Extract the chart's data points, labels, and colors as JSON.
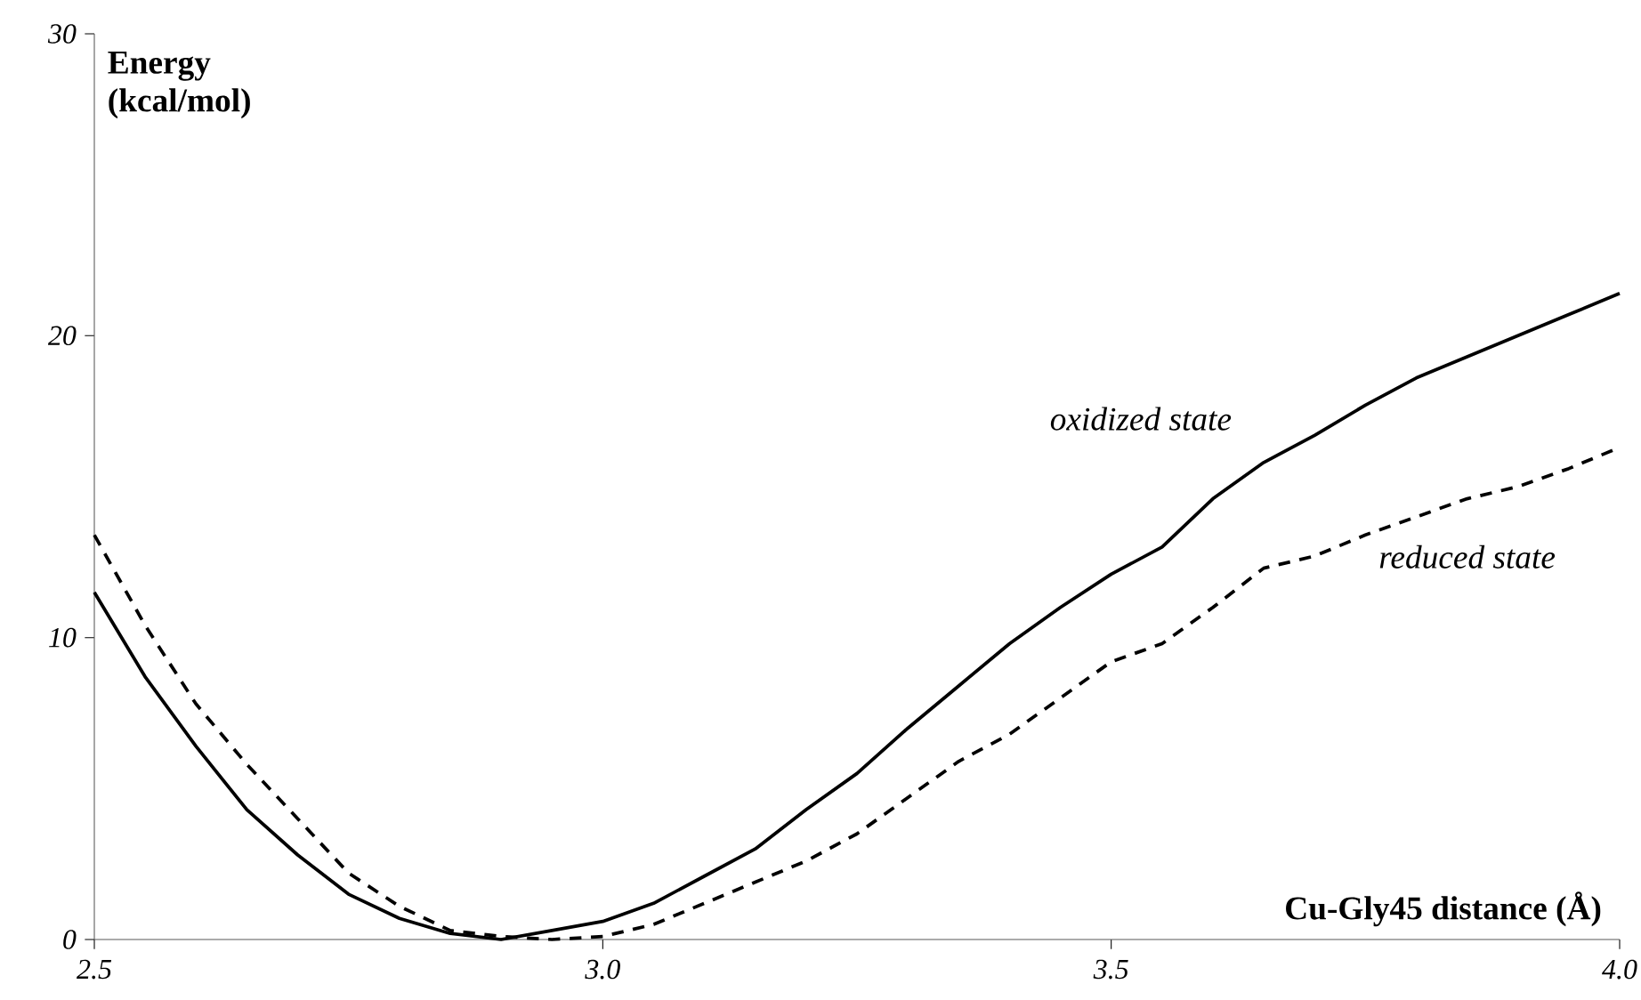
{
  "chart_data": {
    "type": "line",
    "xlabel": "Cu-Gly45 distance (Å)",
    "ylabel": "Energy (kcal/mol)",
    "x": [
      2.5,
      2.55,
      2.6,
      2.65,
      2.7,
      2.75,
      2.8,
      2.85,
      2.9,
      2.95,
      3.0,
      3.05,
      3.1,
      3.15,
      3.2,
      3.25,
      3.3,
      3.35,
      3.4,
      3.45,
      3.5,
      3.55,
      3.6,
      3.65,
      3.7,
      3.75,
      3.8,
      3.85,
      3.9,
      3.95,
      4.0
    ],
    "series": [
      {
        "name": "oxidized state",
        "color": "#000000",
        "line_style": "solid",
        "values": [
          11.5,
          8.7,
          6.4,
          4.3,
          2.8,
          1.5,
          0.7,
          0.2,
          0.0,
          0.3,
          0.6,
          1.2,
          2.1,
          3.0,
          4.3,
          5.5,
          7.0,
          8.4,
          9.8,
          11.0,
          12.1,
          13.0,
          14.6,
          15.8,
          16.7,
          17.7,
          18.6,
          19.3,
          20.0,
          20.7,
          21.4
        ]
      },
      {
        "name": "reduced state",
        "color": "#000000",
        "line_style": "dashed",
        "values": [
          13.4,
          10.4,
          7.8,
          5.8,
          4.0,
          2.2,
          1.1,
          0.3,
          0.1,
          0.0,
          0.1,
          0.5,
          1.2,
          1.9,
          2.6,
          3.5,
          4.7,
          5.9,
          6.8,
          8.0,
          9.2,
          9.8,
          11.0,
          12.3,
          12.7,
          13.4,
          14.0,
          14.6,
          15.0,
          15.6,
          16.3
        ]
      }
    ],
    "xlim": [
      2.5,
      4.0
    ],
    "ylim": [
      0,
      30
    ],
    "xticks": [
      2.5,
      {
        "value": 3,
        "label": "3.0"
      },
      3.5,
      {
        "value": 4,
        "label": "4.0"
      }
    ],
    "yticks": [
      0,
      10,
      20,
      30
    ],
    "grid": false,
    "legend": false,
    "marker": "none"
  }
}
